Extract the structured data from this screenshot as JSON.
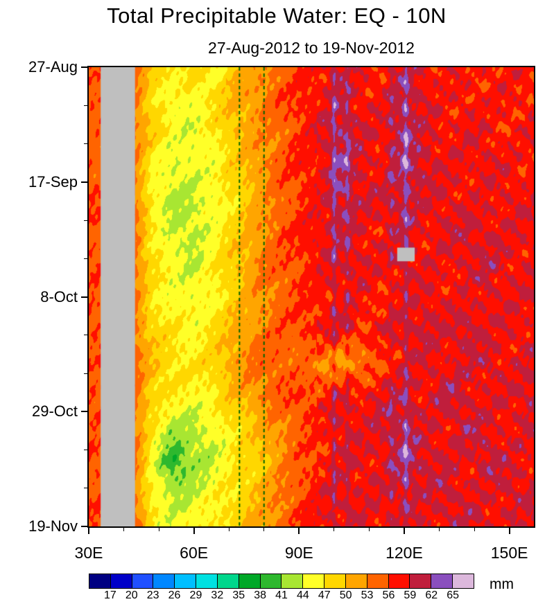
{
  "chart_data": {
    "type": "heatmap",
    "title": "Total Precipitable Water: EQ - 10N",
    "subtitle": "27-Aug-2012 to 19-Nov-2012",
    "x_axis": {
      "min": 30,
      "max": 157,
      "major_ticks": [
        {
          "value": 30,
          "label": "30E"
        },
        {
          "value": 60,
          "label": "60E"
        },
        {
          "value": 90,
          "label": "90E"
        },
        {
          "value": 120,
          "label": "120E"
        },
        {
          "value": 150,
          "label": "150E"
        }
      ],
      "minor_ticks": [
        40,
        50,
        70,
        80,
        100,
        110,
        130,
        140
      ]
    },
    "y_axis": {
      "min_day": 0,
      "max_day": 84,
      "major_ticks": [
        {
          "day": 0,
          "label": "27-Aug"
        },
        {
          "day": 21,
          "label": "17-Sep"
        },
        {
          "day": 42,
          "label": "8-Oct"
        },
        {
          "day": 63,
          "label": "29-Oct"
        },
        {
          "day": 84,
          "label": "19-Nov"
        }
      ],
      "minor_ticks": [
        7,
        14,
        28,
        35,
        49,
        56,
        70,
        77
      ]
    },
    "colorbar": {
      "unit": "mm",
      "boundaries": [
        17,
        20,
        23,
        26,
        29,
        32,
        35,
        38,
        41,
        44,
        47,
        50,
        53,
        56,
        59,
        62,
        65
      ],
      "colors": [
        "#000082",
        "#0000C8",
        "#2050FF",
        "#0087FF",
        "#00BFFF",
        "#00E1E1",
        "#00D78C",
        "#00A828",
        "#2EB82E",
        "#A8E632",
        "#FFFF28",
        "#FFD700",
        "#FFA500",
        "#FF6400",
        "#FF0F00",
        "#C01E3C",
        "#8A4FBE",
        "#DCB8DC"
      ]
    },
    "grid": {
      "lon": [
        30,
        36,
        42,
        48,
        54,
        60,
        66,
        72,
        78,
        84,
        90,
        96,
        102,
        108,
        114,
        120,
        126,
        132,
        138,
        144,
        150,
        156
      ],
      "days": [
        0,
        6,
        12,
        18,
        24,
        30,
        36,
        42,
        48,
        54,
        60,
        66,
        72,
        78,
        84
      ],
      "values": [
        [
          55,
          null,
          null,
          50,
          47,
          48,
          46,
          50,
          52,
          54,
          56,
          58,
          59,
          58,
          57,
          60,
          58,
          58,
          57,
          58,
          57,
          58
        ],
        [
          56,
          null,
          null,
          48,
          45,
          46,
          48,
          51,
          53,
          55,
          57,
          58,
          60,
          58,
          58,
          61,
          59,
          57,
          58,
          57,
          58,
          57
        ],
        [
          54,
          null,
          null,
          49,
          46,
          44,
          47,
          50,
          52,
          54,
          56,
          59,
          61,
          59,
          58,
          62,
          59,
          58,
          59,
          58,
          57,
          58
        ],
        [
          55,
          null,
          null,
          47,
          44,
          45,
          46,
          49,
          52,
          55,
          57,
          58,
          62,
          59,
          58,
          62,
          60,
          58,
          58,
          59,
          58,
          57
        ],
        [
          56,
          null,
          null,
          46,
          43,
          44,
          45,
          48,
          51,
          54,
          56,
          58,
          61,
          59,
          59,
          61,
          59,
          59,
          58,
          58,
          59,
          58
        ],
        [
          55,
          null,
          null,
          47,
          44,
          43,
          46,
          49,
          52,
          55,
          57,
          59,
          60,
          58,
          58,
          60,
          58,
          59,
          60,
          59,
          58,
          59
        ],
        [
          56,
          null,
          null,
          48,
          45,
          44,
          47,
          50,
          53,
          55,
          56,
          58,
          59,
          59,
          58,
          59,
          58,
          58,
          59,
          60,
          59,
          58
        ],
        [
          55,
          null,
          null,
          47,
          46,
          45,
          46,
          49,
          52,
          54,
          56,
          57,
          58,
          58,
          57,
          58,
          59,
          58,
          58,
          59,
          58,
          59
        ],
        [
          56,
          null,
          null,
          49,
          47,
          46,
          48,
          51,
          53,
          55,
          56,
          58,
          59,
          57,
          58,
          59,
          60,
          59,
          61,
          58,
          59,
          58
        ],
        [
          55,
          null,
          null,
          50,
          48,
          47,
          49,
          52,
          54,
          55,
          54,
          53,
          51,
          53,
          56,
          58,
          59,
          58,
          59,
          60,
          58,
          59
        ],
        [
          56,
          null,
          null,
          49,
          47,
          46,
          47,
          50,
          53,
          55,
          56,
          57,
          58,
          58,
          59,
          60,
          58,
          61,
          59,
          58,
          59,
          60
        ],
        [
          55,
          null,
          null,
          47,
          43,
          43,
          45,
          48,
          50,
          53,
          55,
          57,
          59,
          58,
          60,
          61,
          59,
          58,
          61,
          59,
          58,
          59
        ],
        [
          56,
          null,
          null,
          46,
          38,
          42,
          44,
          47,
          49,
          52,
          55,
          57,
          58,
          59,
          58,
          62,
          60,
          59,
          58,
          61,
          59,
          58
        ],
        [
          55,
          null,
          null,
          46,
          43,
          44,
          46,
          48,
          50,
          53,
          56,
          58,
          59,
          58,
          59,
          60,
          59,
          60,
          59,
          58,
          60,
          59
        ],
        [
          56,
          null,
          null,
          47,
          45,
          46,
          47,
          49,
          51,
          54,
          56,
          58,
          58,
          59,
          58,
          59,
          58,
          59,
          60,
          59,
          58,
          59
        ]
      ]
    },
    "missing_color": "#BFBFBF",
    "mask_band": {
      "lon0": 33.4,
      "lon1": 43.2
    },
    "missing_patch": {
      "lon0": 118,
      "lon1": 123,
      "day0": 33,
      "day1": 35.5
    },
    "dashed_lines": {
      "color": "#006400",
      "lons": [
        73,
        80
      ]
    },
    "streaks": [
      {
        "lon": 100.0,
        "amp": 3.2
      },
      {
        "lon": 103.8,
        "amp": 2.4
      },
      {
        "lon": 116.3,
        "amp": 1.8
      },
      {
        "lon": 120.5,
        "amp": 3.0
      }
    ]
  }
}
